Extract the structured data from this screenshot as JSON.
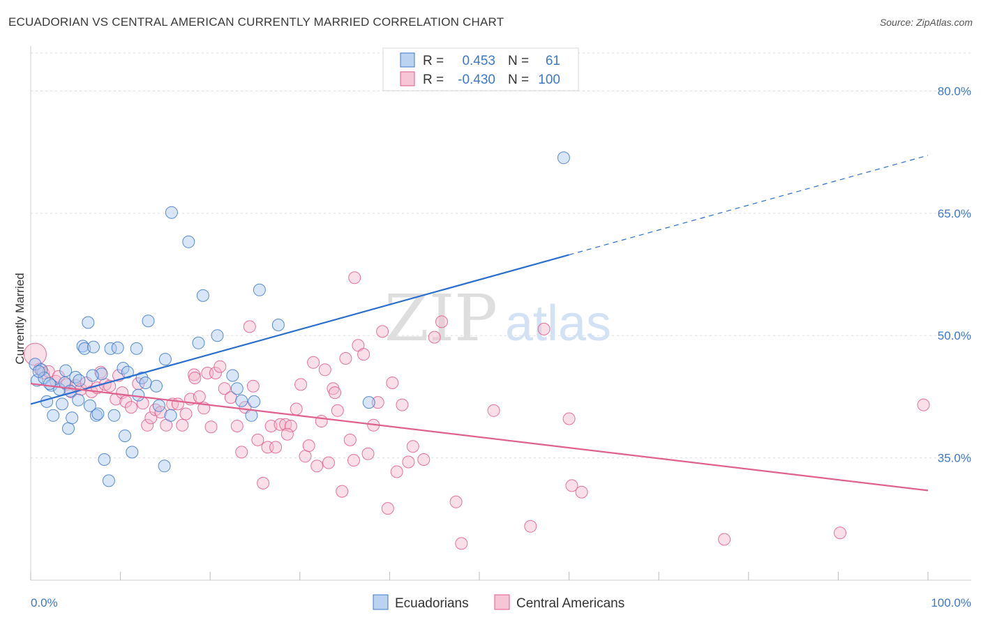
{
  "title": "ECUADORIAN VS CENTRAL AMERICAN CURRENTLY MARRIED CORRELATION CHART",
  "source": "Source: ZipAtlas.com",
  "watermark": {
    "zip": "ZIP",
    "atlas": "atlas"
  },
  "colors": {
    "blue": "#3c78c8",
    "blue_fill": "#aac8ee",
    "blue_line": "#2a6fd0",
    "pink": "#e05a8a",
    "pink_fill": "#f4b8cc",
    "pink_line": "#e0608e",
    "grid": "#dddddd"
  },
  "legend": {
    "rows": [
      {
        "r_label": "R =",
        "r_value": "0.453",
        "n_label": "N =",
        "n_value": "61"
      },
      {
        "r_label": "R =",
        "r_value": "-0.430",
        "n_label": "N =",
        "n_value": "100"
      }
    ]
  },
  "chart_data": {
    "type": "scatter",
    "title": "ECUADORIAN VS CENTRAL AMERICAN CURRENTLY MARRIED CORRELATION CHART",
    "ylabel": "Currently Married",
    "xlim": [
      0,
      100
    ],
    "ylim": [
      20,
      85
    ],
    "x_tick_labels": [
      "0.0%",
      "100.0%"
    ],
    "y_ticks": [
      35,
      50,
      65,
      80
    ],
    "y_tick_labels": [
      "35.0%",
      "50.0%",
      "65.0%",
      "80.0%"
    ],
    "grid": true,
    "legend_position": "top-center",
    "series": [
      {
        "name": "Ecuadorians",
        "color": "#3c78c8",
        "trend": {
          "x0": 0,
          "y0": 41.6,
          "x1": 60,
          "y1": 59.9,
          "dash_to_x": 100,
          "dash_to_y": 72.1
        },
        "points": [
          [
            0.5,
            46.5
          ],
          [
            0.7,
            44.5
          ],
          [
            1.2,
            45.8
          ],
          [
            1.5,
            44.8
          ],
          [
            1.8,
            41.9
          ],
          [
            2.3,
            43.9
          ],
          [
            2.5,
            40.2
          ],
          [
            3.2,
            43.4
          ],
          [
            3.5,
            41.6
          ],
          [
            3.8,
            44.2
          ],
          [
            3.9,
            45.7
          ],
          [
            4.2,
            38.6
          ],
          [
            4.6,
            39.9
          ],
          [
            5.0,
            44.9
          ],
          [
            5.3,
            42.1
          ],
          [
            5.4,
            44.5
          ],
          [
            5.8,
            48.7
          ],
          [
            6.0,
            48.4
          ],
          [
            6.4,
            51.6
          ],
          [
            6.6,
            41.4
          ],
          [
            7.0,
            48.6
          ],
          [
            7.3,
            40.2
          ],
          [
            7.5,
            40.4
          ],
          [
            7.9,
            45.3
          ],
          [
            8.2,
            34.8
          ],
          [
            8.7,
            32.2
          ],
          [
            8.9,
            48.4
          ],
          [
            9.3,
            40.2
          ],
          [
            9.7,
            48.5
          ],
          [
            10.3,
            46.0
          ],
          [
            10.5,
            37.7
          ],
          [
            10.8,
            45.5
          ],
          [
            11.3,
            35.7
          ],
          [
            11.8,
            48.4
          ],
          [
            12.0,
            42.7
          ],
          [
            12.4,
            44.8
          ],
          [
            13.1,
            51.8
          ],
          [
            14.0,
            43.8
          ],
          [
            14.3,
            41.4
          ],
          [
            14.9,
            34.0
          ],
          [
            15.0,
            47.1
          ],
          [
            15.6,
            40.2
          ],
          [
            15.7,
            65.1
          ],
          [
            17.6,
            61.5
          ],
          [
            18.7,
            49.1
          ],
          [
            19.2,
            54.9
          ],
          [
            20.8,
            50.0
          ],
          [
            22.5,
            45.1
          ],
          [
            23.0,
            43.5
          ],
          [
            23.5,
            42.0
          ],
          [
            24.6,
            40.2
          ],
          [
            24.9,
            41.9
          ],
          [
            25.5,
            55.6
          ],
          [
            27.6,
            51.3
          ],
          [
            37.7,
            41.8
          ],
          [
            59.4,
            71.8
          ],
          [
            0.9,
            45.6
          ],
          [
            2.1,
            44.1
          ],
          [
            4.4,
            43.2
          ],
          [
            6.9,
            45.1
          ],
          [
            12.8,
            44.2
          ]
        ]
      },
      {
        "name": "Central Americans",
        "color": "#e05a8a",
        "trend": {
          "x0": 0,
          "y0": 44.1,
          "x1": 100,
          "y1": 31.0
        },
        "points": [
          [
            0.5,
            47.7
          ],
          [
            1.0,
            45.9
          ],
          [
            1.4,
            45.4
          ],
          [
            2.0,
            45.6
          ],
          [
            2.8,
            44.4
          ],
          [
            3.1,
            45.0
          ],
          [
            4.0,
            44.0
          ],
          [
            4.5,
            43.1
          ],
          [
            5.0,
            43.9
          ],
          [
            5.6,
            43.4
          ],
          [
            6.2,
            44.2
          ],
          [
            6.8,
            43.1
          ],
          [
            7.4,
            43.6
          ],
          [
            7.8,
            45.5
          ],
          [
            8.3,
            44.0
          ],
          [
            8.8,
            43.8
          ],
          [
            9.5,
            42.2
          ],
          [
            10.2,
            43.0
          ],
          [
            10.6,
            41.9
          ],
          [
            11.2,
            41.2
          ],
          [
            12.0,
            44.1
          ],
          [
            12.5,
            41.7
          ],
          [
            13.0,
            39.0
          ],
          [
            13.4,
            39.9
          ],
          [
            13.9,
            40.9
          ],
          [
            14.5,
            40.6
          ],
          [
            15.1,
            39.0
          ],
          [
            15.8,
            41.6
          ],
          [
            16.4,
            41.6
          ],
          [
            16.9,
            39.0
          ],
          [
            17.3,
            40.4
          ],
          [
            17.8,
            42.2
          ],
          [
            18.2,
            45.2
          ],
          [
            18.8,
            42.5
          ],
          [
            19.3,
            41.1
          ],
          [
            19.7,
            45.4
          ],
          [
            20.1,
            38.8
          ],
          [
            20.6,
            45.4
          ],
          [
            21.1,
            46.2
          ],
          [
            21.6,
            43.5
          ],
          [
            22.3,
            42.4
          ],
          [
            23.0,
            38.9
          ],
          [
            23.5,
            35.7
          ],
          [
            23.9,
            41.2
          ],
          [
            24.4,
            51.1
          ],
          [
            24.8,
            43.8
          ],
          [
            25.3,
            37.2
          ],
          [
            25.9,
            31.9
          ],
          [
            26.4,
            36.3
          ],
          [
            26.8,
            38.9
          ],
          [
            27.3,
            36.3
          ],
          [
            27.8,
            39.1
          ],
          [
            28.4,
            39.1
          ],
          [
            29.0,
            38.9
          ],
          [
            29.6,
            41.0
          ],
          [
            30.1,
            44.0
          ],
          [
            30.6,
            35.2
          ],
          [
            31.0,
            36.5
          ],
          [
            31.5,
            46.7
          ],
          [
            31.9,
            34.0
          ],
          [
            32.4,
            39.5
          ],
          [
            32.8,
            45.8
          ],
          [
            33.2,
            34.4
          ],
          [
            33.7,
            43.5
          ],
          [
            34.2,
            40.8
          ],
          [
            34.7,
            30.9
          ],
          [
            35.1,
            47.2
          ],
          [
            35.6,
            37.2
          ],
          [
            36.0,
            34.7
          ],
          [
            36.5,
            48.8
          ],
          [
            37.1,
            47.7
          ],
          [
            37.6,
            35.5
          ],
          [
            38.2,
            39.0
          ],
          [
            38.7,
            41.8
          ],
          [
            39.2,
            50.5
          ],
          [
            39.8,
            28.8
          ],
          [
            40.3,
            44.2
          ],
          [
            40.8,
            33.3
          ],
          [
            41.4,
            41.5
          ],
          [
            42.1,
            34.5
          ],
          [
            42.6,
            36.4
          ],
          [
            43.8,
            34.8
          ],
          [
            45.0,
            49.8
          ],
          [
            45.8,
            51.7
          ],
          [
            47.4,
            29.6
          ],
          [
            48.0,
            24.5
          ],
          [
            51.6,
            40.8
          ],
          [
            55.7,
            26.6
          ],
          [
            57.2,
            50.8
          ],
          [
            60.0,
            39.8
          ],
          [
            60.3,
            31.6
          ],
          [
            61.4,
            30.8
          ],
          [
            77.3,
            25.0
          ],
          [
            90.2,
            25.8
          ],
          [
            99.5,
            41.5
          ],
          [
            36.1,
            57.1
          ],
          [
            9.8,
            45.1
          ],
          [
            18.3,
            44.8
          ],
          [
            28.6,
            37.9
          ],
          [
            33.9,
            43.0
          ]
        ]
      }
    ]
  }
}
